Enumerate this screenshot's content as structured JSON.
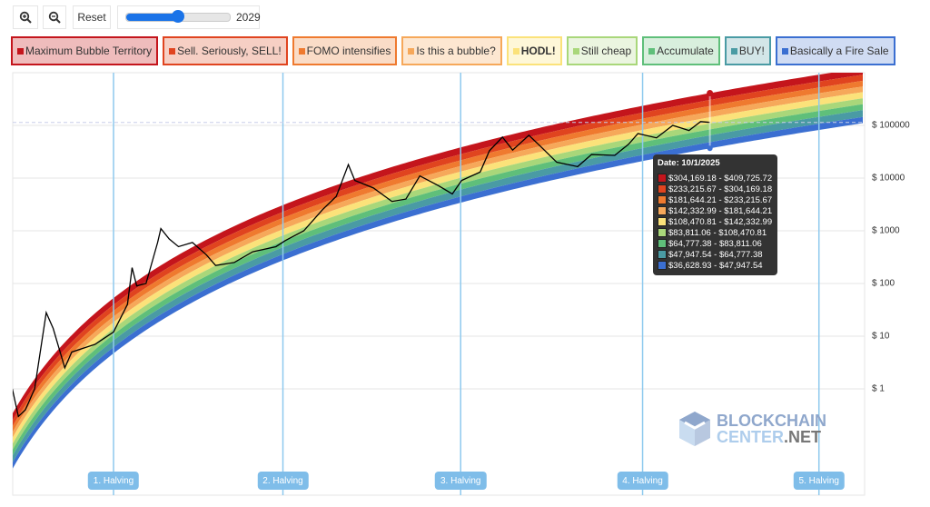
{
  "toolbar": {
    "zoom_in_icon": "zoom-in-icon",
    "zoom_out_icon": "zoom-out-icon",
    "reset_label": "Reset",
    "slider_value": "2029",
    "slider_fraction": 0.5
  },
  "legend": [
    {
      "label": "Maximum Bubble Territory",
      "color": "#c4151c",
      "bg": "#efbcbc"
    },
    {
      "label": "Sell. Seriously, SELL!",
      "color": "#e0441f",
      "bg": "#f6cfc4"
    },
    {
      "label": "FOMO intensifies",
      "color": "#ef7a2f",
      "bg": "#fadcc7"
    },
    {
      "label": "Is this a bubble?",
      "color": "#f6a85a",
      "bg": "#fde7d1"
    },
    {
      "label": "HODL!",
      "color": "#fbe27a",
      "bg": "#fef7d8"
    },
    {
      "label": "Still cheap",
      "color": "#a9d77a",
      "bg": "#ebf5e0"
    },
    {
      "label": "Accumulate",
      "color": "#5fbf7a",
      "bg": "#d8efdd"
    },
    {
      "label": "BUY!",
      "color": "#4a9ba4",
      "bg": "#d3e6e8"
    },
    {
      "label": "Basically a Fire Sale",
      "color": "#3b6fd1",
      "bg": "#d0dcf3"
    }
  ],
  "chart_data": {
    "type": "line",
    "y_scale": "log",
    "x_range": [
      2010.7,
      2029.0
    ],
    "ylim": [
      0.03,
      800000
    ],
    "y_ticks": [
      {
        "value": 1,
        "label": "$ 1"
      },
      {
        "value": 10,
        "label": "$ 10"
      },
      {
        "value": 100,
        "label": "$ 100"
      },
      {
        "value": 1000,
        "label": "$ 1000"
      },
      {
        "value": 10000,
        "label": "$ 10000"
      },
      {
        "value": 100000,
        "label": "$ 100000"
      }
    ],
    "grid": true,
    "halvings": [
      {
        "label": "1. Halving",
        "x": 2012.9
      },
      {
        "label": "2. Halving",
        "x": 2016.55
      },
      {
        "label": "3. Halving",
        "x": 2020.38
      },
      {
        "label": "4. Halving",
        "x": 2024.3
      },
      {
        "label": "5. Halving",
        "x": 2028.1
      }
    ],
    "price_series": [
      [
        2010.72,
        1.0
      ],
      [
        2010.85,
        0.3
      ],
      [
        2011.0,
        0.4
      ],
      [
        2011.2,
        1
      ],
      [
        2011.45,
        28
      ],
      [
        2011.6,
        14
      ],
      [
        2011.85,
        2.5
      ],
      [
        2012.0,
        5
      ],
      [
        2012.5,
        7
      ],
      [
        2012.9,
        12
      ],
      [
        2013.2,
        40
      ],
      [
        2013.3,
        200
      ],
      [
        2013.4,
        90
      ],
      [
        2013.6,
        100
      ],
      [
        2013.85,
        600
      ],
      [
        2013.92,
        1100
      ],
      [
        2014.1,
        700
      ],
      [
        2014.3,
        500
      ],
      [
        2014.6,
        600
      ],
      [
        2014.9,
        350
      ],
      [
        2015.1,
        220
      ],
      [
        2015.5,
        250
      ],
      [
        2015.9,
        400
      ],
      [
        2016.4,
        500
      ],
      [
        2016.6,
        650
      ],
      [
        2017.0,
        1000
      ],
      [
        2017.4,
        2500
      ],
      [
        2017.7,
        4500
      ],
      [
        2017.96,
        18000
      ],
      [
        2018.1,
        9000
      ],
      [
        2018.5,
        6500
      ],
      [
        2018.9,
        3600
      ],
      [
        2019.2,
        4000
      ],
      [
        2019.5,
        11000
      ],
      [
        2019.9,
        7200
      ],
      [
        2020.2,
        5000
      ],
      [
        2020.4,
        9000
      ],
      [
        2020.8,
        13000
      ],
      [
        2021.0,
        33000
      ],
      [
        2021.28,
        60000
      ],
      [
        2021.5,
        34000
      ],
      [
        2021.85,
        65000
      ],
      [
        2022.1,
        40000
      ],
      [
        2022.45,
        20000
      ],
      [
        2022.9,
        16500
      ],
      [
        2023.2,
        28000
      ],
      [
        2023.7,
        27000
      ],
      [
        2024.0,
        44000
      ],
      [
        2024.2,
        70000
      ],
      [
        2024.6,
        58000
      ],
      [
        2024.95,
        100000
      ],
      [
        2025.3,
        80000
      ],
      [
        2025.55,
        118000
      ],
      [
        2025.75,
        114000
      ]
    ],
    "current_price": 114000,
    "tooltip": {
      "date_label": "Date: 10/1/2025",
      "date": 2025.75,
      "ranges": [
        "$304,169.18 - $409,725.72",
        "$233,215.67 - $304,169.18",
        "$181,644.21 - $233,215.67",
        "$142,332.99 - $181,644.21",
        "$108,470.81 - $142,332.99",
        "$83,811.06 - $108,470.81",
        "$64,777.38 - $83,811.06",
        "$47,947.54 - $64,777.38",
        "$36,628.93 - $47,947.54"
      ]
    }
  },
  "watermark": {
    "line1": "BLOCKCHAIN",
    "line2a": "CENTER",
    "line2b": ".NET"
  }
}
